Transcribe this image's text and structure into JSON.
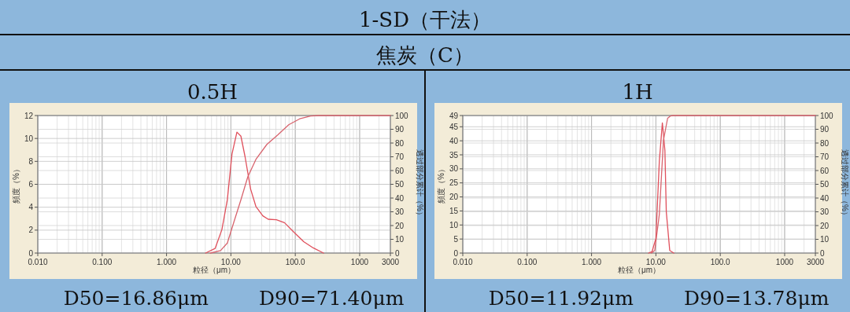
{
  "chart_data": [
    {
      "type": "other",
      "title": "1-SD（干法）",
      "subtitle": "焦炭（C）"
    },
    {
      "type": "line",
      "title": "0.5H",
      "xlabel": "粒径（μm）",
      "ylabel": "頻度（%）",
      "y2label": "透过部分累计（%）",
      "log": "x",
      "grid": true,
      "xlim": [
        0.01,
        3000
      ],
      "xticks": [
        {
          "value": 0.01,
          "label": "0.010"
        },
        {
          "value": 0.1,
          "label": "0.100"
        },
        {
          "value": 1,
          "label": "1.000"
        },
        {
          "value": 10,
          "label": "10.00"
        },
        {
          "value": 100,
          "label": "100.0"
        },
        {
          "value": 1000,
          "label": "1000"
        },
        {
          "value": 3000,
          "label": "3000"
        }
      ],
      "ylim": [
        0,
        12
      ],
      "yticks": [
        0,
        2,
        4,
        6,
        8,
        10,
        12
      ],
      "y2lim": [
        0,
        100
      ],
      "y2ticks": [
        0,
        10,
        20,
        30,
        40,
        50,
        60,
        70,
        80,
        90,
        100
      ],
      "series": [
        {
          "color": "#e0505c",
          "axis": "y",
          "x": [
            4.04,
            5.68,
            7.25,
            8.8,
            10.4,
            12.4,
            14.3,
            16.6,
            20.2,
            24.5,
            31.3,
            38,
            51,
            68,
            96,
            135,
            190,
            275
          ],
          "values": [
            0,
            0.4,
            2.05,
            4.65,
            8.65,
            10.55,
            10.2,
            8.4,
            5.6,
            4.05,
            3.25,
            2.95,
            2.9,
            2.65,
            1.8,
            1.0,
            0.45,
            0
          ]
        },
        {
          "color": "#d8646e",
          "axis": "y2",
          "x": [
            4.8,
            6.9,
            8.8,
            11.2,
            14.3,
            18.3,
            24.5,
            36.2,
            53.3,
            79,
            117,
            173,
            231,
            3000
          ],
          "values": [
            0,
            1.8,
            7.3,
            23,
            38.7,
            55.4,
            68.2,
            79,
            85.9,
            93.3,
            97.6,
            99.6,
            100,
            100
          ]
        }
      ],
      "annotations": [
        "D50=16.86μm",
        "D90=71.40μm"
      ]
    },
    {
      "type": "line",
      "title": "1H",
      "xlabel": "粒径（μm）",
      "ylabel": "頻度（%）",
      "y2label": "透过部分累计（%）",
      "log": "x",
      "grid": true,
      "xlim": [
        0.01,
        3000
      ],
      "xticks": [
        {
          "value": 0.01,
          "label": "0.010"
        },
        {
          "value": 0.1,
          "label": "0.100"
        },
        {
          "value": 1,
          "label": "1.000"
        },
        {
          "value": 10,
          "label": "10.00"
        },
        {
          "value": 100,
          "label": "100.0"
        },
        {
          "value": 1000,
          "label": "1000"
        },
        {
          "value": 3000,
          "label": "3000"
        }
      ],
      "ylim": [
        0,
        49
      ],
      "yticks": [
        0,
        5,
        10,
        15,
        20,
        25,
        30,
        35,
        40,
        45,
        49
      ],
      "y2lim": [
        0,
        100
      ],
      "y2ticks": [
        0,
        10,
        20,
        30,
        40,
        50,
        60,
        70,
        80,
        90,
        100
      ],
      "series": [
        {
          "color": "#e0505c",
          "axis": "y",
          "x": [
            7.7,
            8.7,
            10,
            11.3,
            12.6,
            13.8,
            14.5,
            16.4,
            19
          ],
          "values": [
            0,
            0.5,
            5.2,
            32.7,
            46.4,
            36.5,
            14.7,
            0.9,
            0
          ]
        },
        {
          "color": "#d8646e",
          "axis": "y2",
          "x": [
            8.5,
            9.6,
            11.3,
            13.1,
            15.2,
            16.7,
            18.4,
            3000
          ],
          "values": [
            0,
            1.9,
            28,
            82,
            98,
            99.6,
            100,
            100
          ]
        }
      ],
      "annotations": [
        "D50=11.92μm",
        "D90=13.78μm"
      ]
    }
  ]
}
